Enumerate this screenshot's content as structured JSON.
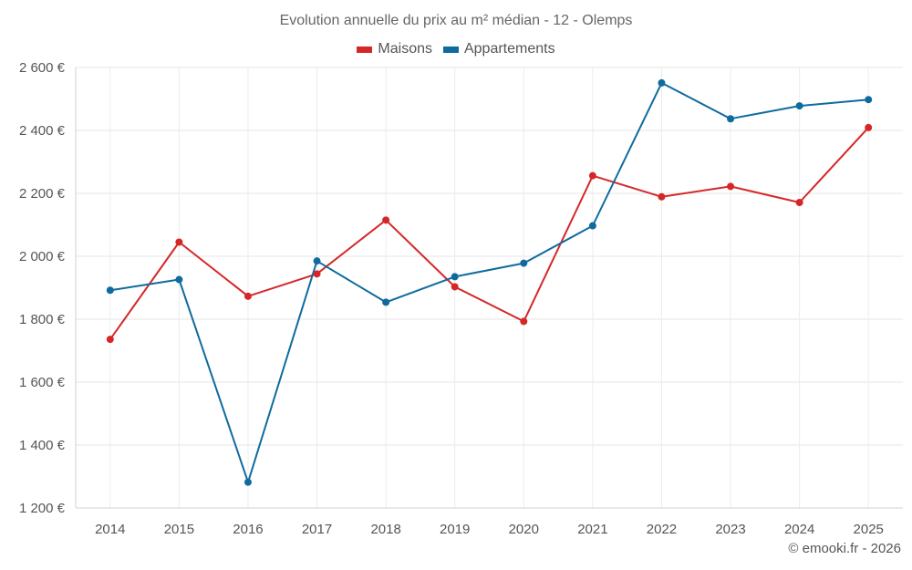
{
  "chart_data": {
    "type": "line",
    "title": "Evolution annuelle du prix au m² médian - 12 - Olemps",
    "categories": [
      "2014",
      "2015",
      "2016",
      "2017",
      "2018",
      "2019",
      "2020",
      "2021",
      "2022",
      "2023",
      "2024",
      "2025"
    ],
    "series": [
      {
        "name": "Maisons",
        "color": "#d62728",
        "values": [
          1736,
          2045,
          1873,
          1944,
          2115,
          1903,
          1793,
          2256,
          2189,
          2222,
          2171,
          2409
        ]
      },
      {
        "name": "Appartements",
        "color": "#0f6b9e",
        "values": [
          1892,
          1926,
          1282,
          1985,
          1854,
          1935,
          1978,
          2097,
          2551,
          2437,
          2478,
          2498
        ]
      }
    ],
    "y_ticks": [
      1200,
      1400,
      1600,
      1800,
      2000,
      2200,
      2400,
      2600
    ],
    "y_tick_labels": [
      "1 200 €",
      "1 400 €",
      "1 600 €",
      "1 800 €",
      "2 000 €",
      "2 200 €",
      "2 400 €",
      "2 600 €"
    ],
    "ylim": [
      1200,
      2600
    ],
    "xlabel": "",
    "ylabel": "",
    "grid": true,
    "legend_position": "top-center"
  },
  "footer": "© emooki.fr - 2026"
}
